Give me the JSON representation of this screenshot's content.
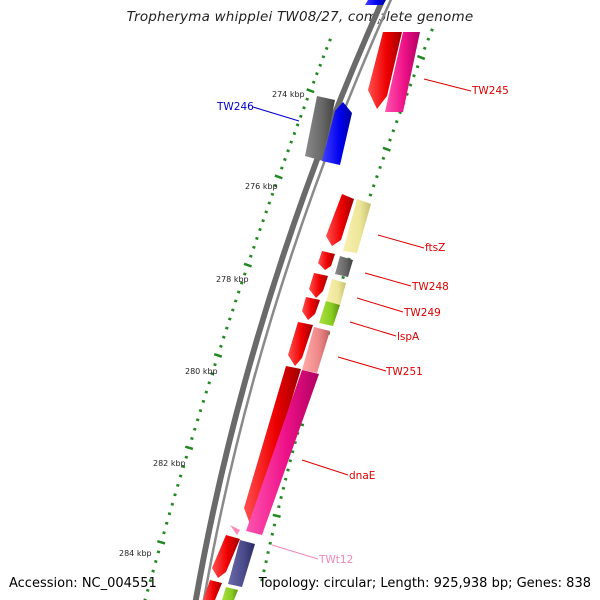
{
  "title": "Tropheryma whipplei TW08/27, complete genome",
  "footer": {
    "accession": "Accession: NC_004551",
    "topology": "Topology: circular; Length: 925,938 bp; Genes: 838"
  },
  "scale_labels": [
    "274 kbp",
    "276 kbp",
    "278 kbp",
    "280 kbp",
    "282 kbp",
    "284 kbp"
  ],
  "gene_labels": [
    {
      "id": "TW245",
      "text": "TW245",
      "color": "#dd0000"
    },
    {
      "id": "TW246",
      "text": "TW246",
      "color": "#0000cc"
    },
    {
      "id": "ftsZ",
      "text": "ftsZ",
      "color": "#dd0000"
    },
    {
      "id": "TW248",
      "text": "TW248",
      "color": "#dd0000"
    },
    {
      "id": "TW249",
      "text": "TW249",
      "color": "#dd0000"
    },
    {
      "id": "lspA",
      "text": "lspA",
      "color": "#dd0000"
    },
    {
      "id": "TW251",
      "text": "TW251",
      "color": "#dd0000"
    },
    {
      "id": "dnaE",
      "text": "dnaE",
      "color": "#dd0000"
    },
    {
      "id": "TWt12",
      "text": "TWt12",
      "color": "#ee88bb"
    }
  ],
  "colors": {
    "cds": "#ee1111",
    "gene_magenta": "#ee1188",
    "gene_blue": "#0000ee",
    "gene_gray": "#666666",
    "gene_yellow": "#eee699",
    "gene_green": "#88cc22",
    "gene_salmon": "#ee8888",
    "gene_purple": "#4a4a8a",
    "trna": "#ff88bb",
    "backbone": "#888888",
    "ticks": "#228822"
  }
}
